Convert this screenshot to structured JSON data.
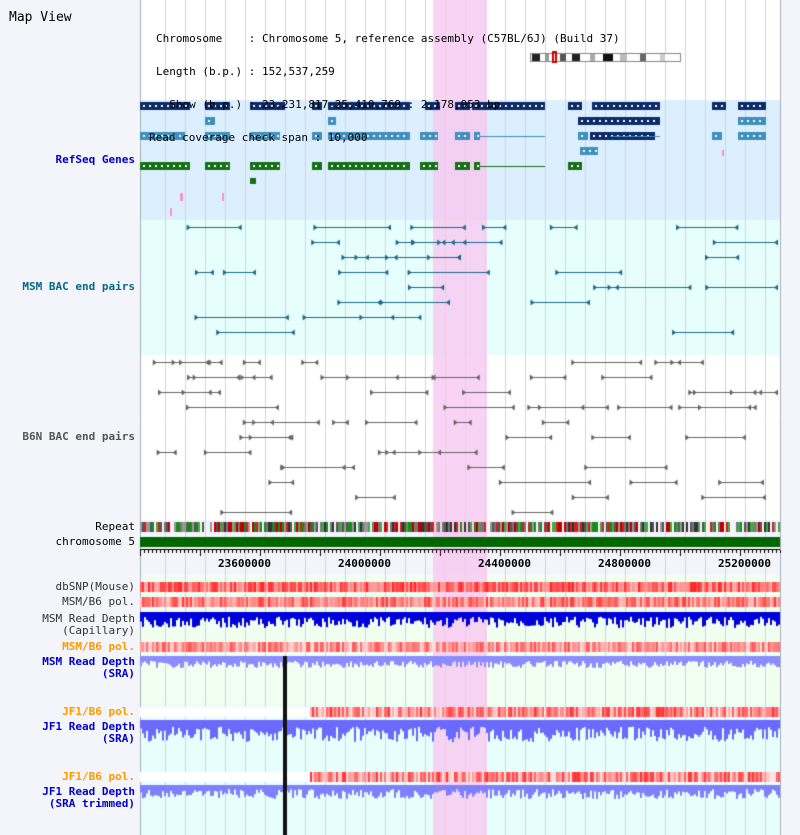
{
  "app": {
    "title": "Map View"
  },
  "header": {
    "chromosome_line": "Chromosome    : Chromosome 5, reference assembly (C57BL/6J) (Build 37)",
    "length_line": "Length (b.p.) : 152,537,259",
    "show_line": "  Show (b.p.) : 23,231,817-25,410,769 : 2,178,953 bp",
    "coverage_line": "Read coverage check span : 10,000"
  },
  "tracks": {
    "refseq": "RefSeq Genes",
    "msm_bac": "MSM BAC end pairs",
    "b6n_bac": "B6N BAC end pairs",
    "repeat": "Repeat",
    "chromosome": "chromosome 5",
    "dbsnp": "dbSNP(Mouse)",
    "msm_b6_pol_1": "MSM/B6 pol.",
    "msm_depth_cap": "MSM Read Depth\n(Capillary)",
    "msm_b6_pol_2": "MSM/B6 pol.",
    "msm_depth_sra": "MSM Read Depth\n(SRA)",
    "jf1_b6_pol_1": "JF1/B6 pol.",
    "jf1_depth_sra": "JF1 Read Depth\n(SRA)",
    "jf1_b6_pol_2": "JF1/B6 pol.",
    "jf1_depth_trim": "JF1 Read Depth\n(SRA trimmed)"
  },
  "axis": {
    "ticks": [
      "23600000",
      "24000000",
      "24400000",
      "24800000",
      "25200000"
    ]
  },
  "colors": {
    "refseq_bg": "#dcefff",
    "msm_bg": "#e6fffd",
    "highlight": "#f9d8f2",
    "dark_blue": "#0d2a66",
    "mid_blue": "#3e8fbd",
    "green": "#157015",
    "teal": "#1c6a8c",
    "gray": "#666666",
    "label_blue": "#0000cc",
    "label_teal": "#006a8a",
    "label_gray": "#555555",
    "label_orange": "#ff9900",
    "chromosome_bar": "#006600"
  }
}
